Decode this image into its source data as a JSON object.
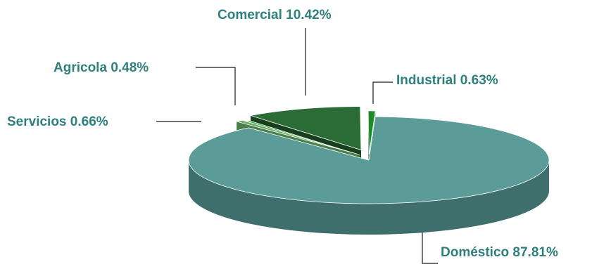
{
  "chart_data": {
    "type": "pie",
    "title": "",
    "style": "3d-exploded",
    "slices": [
      {
        "label": "Doméstico",
        "value": 87.81,
        "display_value": "87.81%",
        "color": "#5c9c98",
        "side_color": "#3e6f6c"
      },
      {
        "label": "Servicios",
        "value": 0.66,
        "display_value": "0.66%",
        "color": "#6eaa6e",
        "side_color": "#4b7f4b"
      },
      {
        "label": "Agricola",
        "value": 0.48,
        "display_value": "0.48%",
        "color": "#3cae3c",
        "side_color": "#1f7a24"
      },
      {
        "label": "Comercial",
        "value": 10.42,
        "display_value": "10.42%",
        "color": "#2b6b35",
        "side_color": "#173f1e"
      },
      {
        "label": "Industrial",
        "value": 0.63,
        "display_value": "0.63%",
        "color": "#1f8a2a",
        "side_color": "#115a18"
      }
    ],
    "label_color": "#2f7f7f",
    "leader_line_color": "#1a1a1a"
  }
}
